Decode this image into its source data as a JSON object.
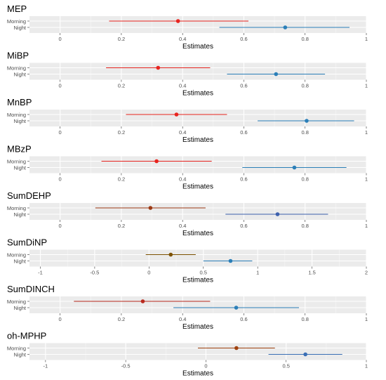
{
  "chart_data": [
    {
      "type": "forest",
      "title": "MEP",
      "xlabel": "Estimates",
      "xlim": [
        -0.1,
        1.0
      ],
      "ticks": [
        0,
        0.2,
        0.4,
        0.6,
        0.8,
        1
      ],
      "tick_labels": [
        "0",
        "0.2",
        "0.4",
        "0.6",
        "0.8",
        "1"
      ],
      "categories": [
        "Morning",
        "Night"
      ],
      "series": [
        {
          "name": "Morning",
          "estimate": 0.385,
          "low": 0.16,
          "high": 0.615,
          "color": "#e8241f"
        },
        {
          "name": "Night",
          "estimate": 0.735,
          "low": 0.52,
          "high": 0.945,
          "color": "#2b7fb8"
        }
      ]
    },
    {
      "type": "forest",
      "title": "MiBP",
      "xlabel": "Estimates",
      "xlim": [
        -0.1,
        1.0
      ],
      "ticks": [
        0,
        0.2,
        0.4,
        0.6,
        0.8,
        1
      ],
      "tick_labels": [
        "0",
        "0.2",
        "0.4",
        "0.6",
        "0.8",
        "1"
      ],
      "categories": [
        "Morning",
        "Night"
      ],
      "series": [
        {
          "name": "Morning",
          "estimate": 0.32,
          "low": 0.15,
          "high": 0.49,
          "color": "#e8241f"
        },
        {
          "name": "Night",
          "estimate": 0.705,
          "low": 0.545,
          "high": 0.865,
          "color": "#2b7fb8"
        }
      ]
    },
    {
      "type": "forest",
      "title": "MnBP",
      "xlabel": "Estimates",
      "xlim": [
        -0.1,
        1.0
      ],
      "ticks": [
        0,
        0.2,
        0.4,
        0.6,
        0.8,
        1
      ],
      "tick_labels": [
        "0",
        "0.2",
        "0.4",
        "0.6",
        "0.8",
        "1"
      ],
      "categories": [
        "Morning",
        "Night"
      ],
      "series": [
        {
          "name": "Morning",
          "estimate": 0.38,
          "low": 0.215,
          "high": 0.545,
          "color": "#e8241f"
        },
        {
          "name": "Night",
          "estimate": 0.805,
          "low": 0.645,
          "high": 0.96,
          "color": "#2b7fb8"
        }
      ]
    },
    {
      "type": "forest",
      "title": "MBzP",
      "xlabel": "Estimates",
      "xlim": [
        -0.1,
        1.0
      ],
      "ticks": [
        0,
        0.2,
        0.4,
        0.6,
        0.8,
        1
      ],
      "tick_labels": [
        "0",
        "0.2",
        "0.4",
        "0.6",
        "0.8",
        "1"
      ],
      "categories": [
        "Morning",
        "Night"
      ],
      "series": [
        {
          "name": "Morning",
          "estimate": 0.315,
          "low": 0.135,
          "high": 0.495,
          "color": "#e8241f"
        },
        {
          "name": "Night",
          "estimate": 0.765,
          "low": 0.595,
          "high": 0.935,
          "color": "#2b7fb8"
        }
      ]
    },
    {
      "type": "forest",
      "title": "SumDEHP",
      "xlabel": "Estimates",
      "xlim": [
        -0.1,
        1.0
      ],
      "ticks": [
        0,
        0.2,
        0.4,
        0.6,
        0.8,
        1
      ],
      "tick_labels": [
        "0",
        "0.2",
        "0.4",
        "0.6",
        "0.8",
        "1"
      ],
      "categories": [
        "Morning",
        "Night"
      ],
      "series": [
        {
          "name": "Morning",
          "estimate": 0.295,
          "low": 0.115,
          "high": 0.475,
          "color": "#9c3a14"
        },
        {
          "name": "Night",
          "estimate": 0.71,
          "low": 0.54,
          "high": 0.875,
          "color": "#3e61ad"
        }
      ]
    },
    {
      "type": "forest",
      "title": "SumDiNP",
      "xlabel": "Estimates",
      "xlim": [
        -1.1,
        2.0
      ],
      "ticks": [
        -1,
        -0.5,
        0,
        0.5,
        1,
        1.5,
        2
      ],
      "tick_labels": [
        "-1",
        "-0.5",
        "0",
        "0.5",
        "1",
        "1.5",
        "2"
      ],
      "categories": [
        "Morning",
        "Night"
      ],
      "series": [
        {
          "name": "Morning",
          "estimate": 0.2,
          "low": -0.03,
          "high": 0.43,
          "color": "#7d5200"
        },
        {
          "name": "Night",
          "estimate": 0.75,
          "low": 0.5,
          "high": 0.95,
          "color": "#2b7fb8"
        }
      ]
    },
    {
      "type": "forest",
      "title": "SumDINCH",
      "xlabel": "Estimates",
      "xlim": [
        -0.1,
        1.0
      ],
      "ticks": [
        0,
        0.2,
        0.4,
        0.6,
        0.8,
        1
      ],
      "tick_labels": [
        "0",
        "0.2",
        "0.4",
        "0.6",
        "0.8",
        "1"
      ],
      "categories": [
        "Morning",
        "Night"
      ],
      "series": [
        {
          "name": "Morning",
          "estimate": 0.27,
          "low": 0.045,
          "high": 0.49,
          "color": "#b92a1e"
        },
        {
          "name": "Night",
          "estimate": 0.575,
          "low": 0.37,
          "high": 0.78,
          "color": "#2b7fb8"
        }
      ]
    },
    {
      "type": "forest",
      "title": "oh-MPHP",
      "xlabel": "Estimates",
      "xlim": [
        -1.1,
        1.0
      ],
      "ticks": [
        -1,
        -0.5,
        0,
        0.5,
        1
      ],
      "tick_labels": [
        "-1",
        "-0.5",
        "0",
        "0.5",
        "1"
      ],
      "categories": [
        "Morning",
        "Night"
      ],
      "series": [
        {
          "name": "Morning",
          "estimate": 0.19,
          "low": -0.05,
          "high": 0.43,
          "color": "#a0420f"
        },
        {
          "name": "Night",
          "estimate": 0.62,
          "low": 0.39,
          "high": 0.85,
          "color": "#3a6fb5"
        }
      ]
    }
  ]
}
